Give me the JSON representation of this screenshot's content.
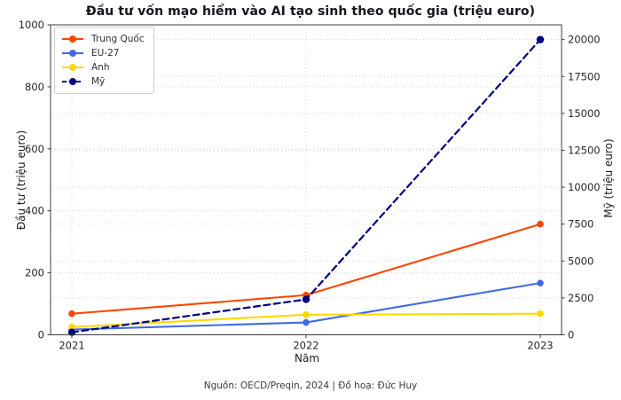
{
  "figure": {
    "title": "Đầu tư vốn mạo hiểm vào AI tạo sinh theo quốc gia (triệu euro)",
    "source_note": "Nguồn: OECD/Preqin, 2024 | Đồ hoạ: Đức Huy"
  },
  "chart_data": {
    "type": "line",
    "title": "Đầu tư vốn mạo hiểm vào AI tạo sinh theo quốc gia (triệu euro)",
    "x_categories": [
      "2021",
      "2022",
      "2023"
    ],
    "xlabel": "Năm",
    "left_axis": {
      "label": "Đầu tư (triệu euro)",
      "lim": [
        0,
        1000
      ],
      "ticks": [
        0,
        200,
        400,
        600,
        800,
        1000
      ]
    },
    "right_axis": {
      "label": "Mỹ (triệu euro)",
      "lim": [
        0,
        21000
      ],
      "ticks": [
        0,
        2500,
        5000,
        7500,
        10000,
        12500,
        15000,
        17500,
        20000
      ]
    },
    "grid": "dotted, horizontal lines for both axes plus vertical lines at each year",
    "legend_position": "upper left",
    "series": [
      {
        "name": "Trung Quốc",
        "axis": "left",
        "color": "#ff4500",
        "style": "solid",
        "marker": "circle",
        "values": [
          68,
          128,
          357
        ]
      },
      {
        "name": "EU-27",
        "axis": "left",
        "color": "#4169e1",
        "style": "solid",
        "marker": "circle",
        "values": [
          17,
          40,
          167
        ]
      },
      {
        "name": "Anh",
        "axis": "left",
        "color": "#ffd700",
        "style": "solid",
        "marker": "circle",
        "values": [
          25,
          65,
          68
        ]
      },
      {
        "name": "Mỹ",
        "axis": "right",
        "color": "#000080",
        "style": "dashed",
        "marker": "circle",
        "values": [
          170,
          2400,
          20000
        ]
      }
    ],
    "source_note": "Nguồn: OECD/Preqin, 2024 | Đồ hoạ: Đức Huy"
  }
}
